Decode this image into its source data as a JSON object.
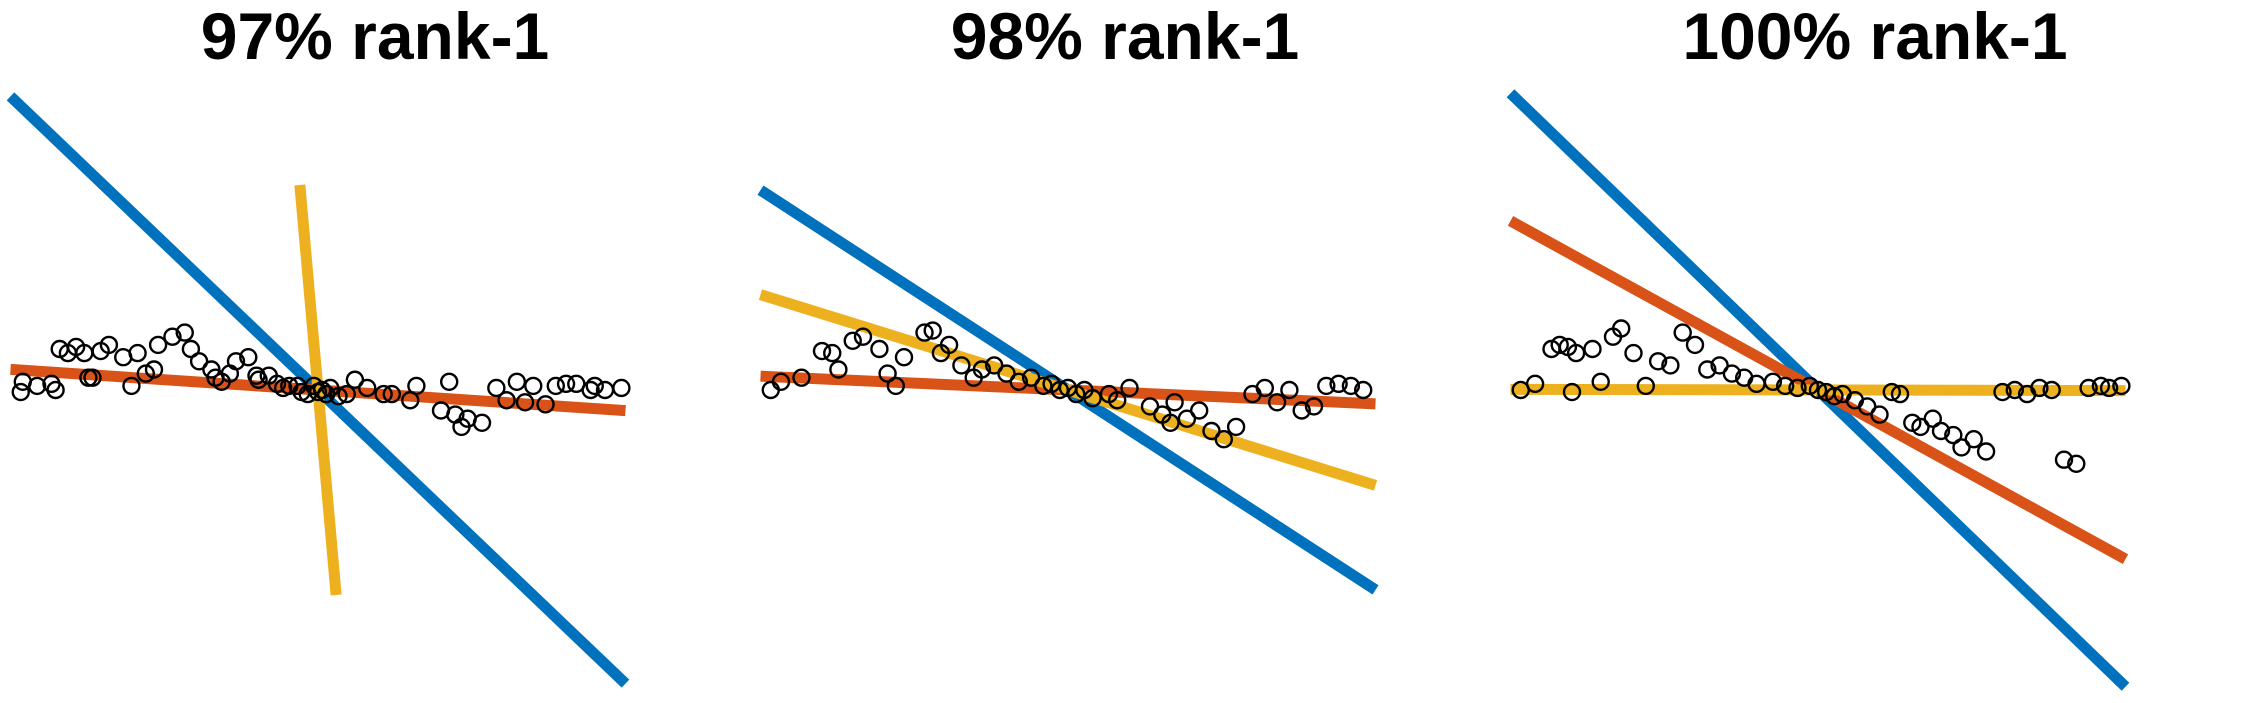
{
  "panels": [
    {
      "title": "97% rank-1"
    },
    {
      "title": "98% rank-1"
    },
    {
      "title": "100% rank-1"
    }
  ],
  "colors": {
    "blue": "#0072BD",
    "orange": "#D95319",
    "yellow": "#EDB120",
    "marker": "#000000"
  },
  "chart_data": [
    {
      "type": "scatter",
      "title": "97% rank-1",
      "lines": [
        {
          "color": "#0072BD",
          "slope": -0.955
        },
        {
          "color": "#D95319",
          "slope": -0.067
        },
        {
          "color": "#EDB120",
          "slope": -11.3
        }
      ],
      "points": [
        [
          -1.45,
          -0.01
        ],
        [
          -1.44,
          0.04
        ],
        [
          -1.37,
          0.02
        ],
        [
          -1.3,
          0.03
        ],
        [
          -1.28,
          0.0
        ],
        [
          -1.26,
          0.2
        ],
        [
          -1.22,
          0.18
        ],
        [
          -1.18,
          0.21
        ],
        [
          -1.14,
          0.18
        ],
        [
          -1.12,
          0.06
        ],
        [
          -1.1,
          0.06
        ],
        [
          -1.06,
          0.19
        ],
        [
          -1.02,
          0.22
        ],
        [
          -0.95,
          0.16
        ],
        [
          -0.91,
          0.02
        ],
        [
          -0.88,
          0.18
        ],
        [
          -0.84,
          0.08
        ],
        [
          -0.8,
          0.1
        ],
        [
          -0.78,
          0.22
        ],
        [
          -0.71,
          0.26
        ],
        [
          -0.65,
          0.28
        ],
        [
          -0.62,
          0.2
        ],
        [
          -0.58,
          0.14
        ],
        [
          -0.52,
          0.1
        ],
        [
          -0.5,
          0.06
        ],
        [
          -0.47,
          0.04
        ],
        [
          -0.43,
          0.08
        ],
        [
          -0.4,
          0.14
        ],
        [
          -0.34,
          0.16
        ],
        [
          -0.3,
          0.07
        ],
        [
          -0.29,
          0.05
        ],
        [
          -0.24,
          0.07
        ],
        [
          -0.2,
          0.03
        ],
        [
          -0.17,
          0.01
        ],
        [
          -0.14,
          0.02
        ],
        [
          -0.1,
          0.02
        ],
        [
          -0.08,
          -0.01
        ],
        [
          -0.05,
          -0.02
        ],
        [
          -0.02,
          0.02
        ],
        [
          0.0,
          -0.01
        ],
        [
          0.02,
          0.0
        ],
        [
          0.04,
          -0.02
        ],
        [
          0.06,
          0.01
        ],
        [
          0.1,
          -0.03
        ],
        [
          0.14,
          -0.02
        ],
        [
          0.18,
          0.05
        ],
        [
          0.24,
          0.01
        ],
        [
          0.36,
          -0.02
        ],
        [
          0.48,
          0.02
        ],
        [
          0.6,
          -0.1
        ],
        [
          0.64,
          0.04
        ],
        [
          0.67,
          -0.12
        ],
        [
          0.73,
          -0.14
        ],
        [
          0.8,
          -0.16
        ],
        [
          0.87,
          0.01
        ],
        [
          0.92,
          -0.05
        ],
        [
          0.97,
          0.04
        ],
        [
          1.01,
          -0.06
        ],
        [
          1.05,
          0.02
        ],
        [
          1.11,
          -0.07
        ],
        [
          1.16,
          0.02
        ],
        [
          1.21,
          0.03
        ],
        [
          1.26,
          0.03
        ],
        [
          1.33,
          0.0
        ],
        [
          1.35,
          0.02
        ],
        [
          1.4,
          0.0
        ],
        [
          1.48,
          0.01
        ],
        [
          0.32,
          -0.02
        ],
        [
          0.45,
          -0.05
        ],
        [
          0.7,
          -0.18
        ]
      ]
    },
    {
      "type": "scatter",
      "title": "98% rank-1",
      "lines": [
        {
          "color": "#0072BD",
          "slope": -0.65
        },
        {
          "color": "#D95319",
          "slope": -0.045
        },
        {
          "color": "#EDB120",
          "slope": -0.31
        }
      ],
      "points": [
        [
          -1.45,
          0.0
        ],
        [
          -1.4,
          0.04
        ],
        [
          -1.3,
          0.06
        ],
        [
          -1.2,
          0.19
        ],
        [
          -1.15,
          0.18
        ],
        [
          -1.12,
          0.1
        ],
        [
          -1.05,
          0.24
        ],
        [
          -1.0,
          0.26
        ],
        [
          -0.92,
          0.2
        ],
        [
          -0.88,
          0.08
        ],
        [
          -0.84,
          0.02
        ],
        [
          -0.8,
          0.16
        ],
        [
          -0.7,
          0.28
        ],
        [
          -0.66,
          0.29
        ],
        [
          -0.58,
          0.22
        ],
        [
          -0.52,
          0.12
        ],
        [
          -0.46,
          0.06
        ],
        [
          -0.42,
          0.1
        ],
        [
          -0.36,
          0.12
        ],
        [
          -0.3,
          0.08
        ],
        [
          -0.24,
          0.04
        ],
        [
          -0.18,
          0.06
        ],
        [
          -0.12,
          0.02
        ],
        [
          -0.08,
          0.03
        ],
        [
          -0.04,
          0.0
        ],
        [
          0.0,
          0.01
        ],
        [
          0.04,
          -0.02
        ],
        [
          0.08,
          0.0
        ],
        [
          0.12,
          -0.04
        ],
        [
          0.2,
          -0.02
        ],
        [
          0.3,
          0.01
        ],
        [
          0.4,
          -0.08
        ],
        [
          0.46,
          -0.12
        ],
        [
          0.52,
          -0.06
        ],
        [
          0.58,
          -0.14
        ],
        [
          0.64,
          -0.1
        ],
        [
          0.7,
          -0.2
        ],
        [
          0.76,
          -0.24
        ],
        [
          0.82,
          -0.18
        ],
        [
          0.9,
          -0.02
        ],
        [
          0.96,
          0.01
        ],
        [
          1.02,
          -0.06
        ],
        [
          1.08,
          0.0
        ],
        [
          1.14,
          -0.1
        ],
        [
          1.2,
          -0.08
        ],
        [
          1.26,
          0.02
        ],
        [
          1.32,
          0.03
        ],
        [
          1.38,
          0.02
        ],
        [
          1.44,
          0.0
        ],
        [
          -0.62,
          0.18
        ],
        [
          0.24,
          -0.05
        ],
        [
          0.5,
          -0.16
        ]
      ]
    },
    {
      "type": "scatter",
      "title": "100% rank-1",
      "lines": [
        {
          "color": "#0072BD",
          "slope": -0.965
        },
        {
          "color": "#D95319",
          "slope": -0.55
        },
        {
          "color": "#EDB120",
          "slope": -0.002
        }
      ],
      "points": [
        [
          -1.45,
          0.0
        ],
        [
          -1.38,
          0.03
        ],
        [
          -1.3,
          0.2
        ],
        [
          -1.26,
          0.22
        ],
        [
          -1.22,
          0.21
        ],
        [
          -1.18,
          0.18
        ],
        [
          -1.1,
          0.2
        ],
        [
          -1.06,
          0.04
        ],
        [
          -1.0,
          0.26
        ],
        [
          -0.96,
          0.3
        ],
        [
          -0.9,
          0.18
        ],
        [
          -0.84,
          0.02
        ],
        [
          -0.78,
          0.14
        ],
        [
          -0.72,
          0.12
        ],
        [
          -0.66,
          0.28
        ],
        [
          -0.6,
          0.22
        ],
        [
          -0.54,
          0.1
        ],
        [
          -0.48,
          0.12
        ],
        [
          -0.42,
          0.08
        ],
        [
          -0.36,
          0.06
        ],
        [
          -0.3,
          0.03
        ],
        [
          -0.22,
          0.04
        ],
        [
          -0.16,
          0.02
        ],
        [
          -0.1,
          0.01
        ],
        [
          -0.04,
          0.02
        ],
        [
          0.0,
          0.0
        ],
        [
          0.04,
          -0.01
        ],
        [
          0.08,
          -0.03
        ],
        [
          0.12,
          -0.02
        ],
        [
          0.18,
          -0.05
        ],
        [
          0.24,
          -0.08
        ],
        [
          0.3,
          -0.12
        ],
        [
          0.4,
          -0.02
        ],
        [
          0.46,
          -0.16
        ],
        [
          0.5,
          -0.18
        ],
        [
          0.56,
          -0.14
        ],
        [
          0.6,
          -0.2
        ],
        [
          0.66,
          -0.22
        ],
        [
          0.7,
          -0.28
        ],
        [
          0.76,
          -0.24
        ],
        [
          0.82,
          -0.3
        ],
        [
          0.9,
          -0.01
        ],
        [
          0.96,
          0.0
        ],
        [
          1.02,
          -0.02
        ],
        [
          1.08,
          0.01
        ],
        [
          1.14,
          0.0
        ],
        [
          1.2,
          -0.34
        ],
        [
          1.26,
          -0.36
        ],
        [
          1.32,
          0.01
        ],
        [
          1.38,
          0.02
        ],
        [
          1.42,
          0.01
        ],
        [
          1.48,
          0.02
        ],
        [
          -1.2,
          -0.01
        ],
        [
          0.36,
          -0.01
        ]
      ]
    }
  ]
}
